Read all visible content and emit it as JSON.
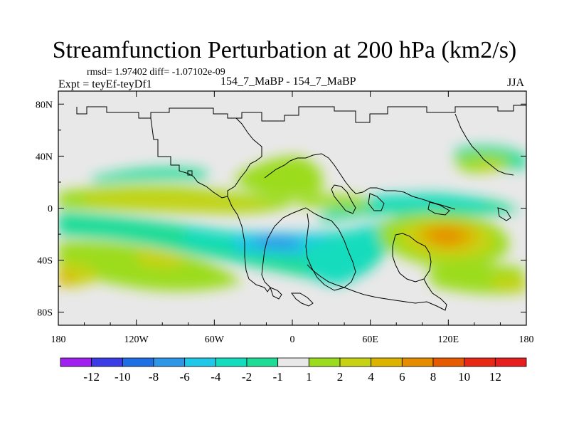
{
  "chart_data": {
    "type": "heatmap",
    "title": "Streamfunction Perturbation at 200 hPa (km2/s)",
    "stats_text": "rmsd= 1.97402 diff= -1.07102e-09",
    "experiment": "Expt = teyEf-teyDf1",
    "runs": "154_7_MaBP - 154_7_MaBP",
    "season": "JJA",
    "xlim": [
      -180,
      180
    ],
    "ylim": [
      -90,
      90
    ],
    "x_ticks": [
      {
        "value": -180,
        "label": "180"
      },
      {
        "value": -120,
        "label": "120W"
      },
      {
        "value": -60,
        "label": "60W"
      },
      {
        "value": 0,
        "label": "0"
      },
      {
        "value": 60,
        "label": "60E"
      },
      {
        "value": 120,
        "label": "120E"
      },
      {
        "value": 180,
        "label": "180"
      }
    ],
    "y_ticks": [
      {
        "value": 80,
        "label": "80N"
      },
      {
        "value": 40,
        "label": "40N"
      },
      {
        "value": 0,
        "label": "0"
      },
      {
        "value": -40,
        "label": "40S"
      },
      {
        "value": -80,
        "label": "80S"
      }
    ],
    "colorbar": {
      "labels": [
        "-12",
        "-10",
        "-8",
        "-6",
        "-4",
        "-2",
        "-1",
        "1",
        "2",
        "4",
        "6",
        "8",
        "10",
        "12"
      ],
      "colors": [
        "#a020f0",
        "#3c3ce6",
        "#1e6ee6",
        "#2d96e6",
        "#1ec8e6",
        "#14dcbe",
        "#1edc96",
        "#e8e8e8",
        "#9bdc1e",
        "#c8d214",
        "#dcb400",
        "#e68c00",
        "#e65a00",
        "#e62814",
        "#e61e1e"
      ]
    },
    "anomalies": [
      {
        "lon": -80,
        "lat": -22,
        "level": 1
      },
      {
        "lon": 0,
        "lat": -22,
        "level": 1
      },
      {
        "lon": 50,
        "lat": -18,
        "level": 1
      },
      {
        "lon": -10,
        "lat": -24,
        "level": 2
      },
      {
        "lon": 45,
        "lat": -25,
        "level": 2
      },
      {
        "lon": -115,
        "lat": -8,
        "level": 1
      },
      {
        "lon": 90,
        "lat": 10,
        "level": 1
      },
      {
        "lon": 105,
        "lat": 8,
        "level": 2
      },
      {
        "lon": -140,
        "lat": 33,
        "level": 1
      },
      {
        "lon": -162,
        "lat": -46,
        "level": 1
      },
      {
        "lon": -95,
        "lat": 6,
        "level": 2
      },
      {
        "lon": -130,
        "lat": 10,
        "level": 2
      },
      {
        "lon": 0,
        "lat": 25,
        "level": 2
      },
      {
        "lon": 120,
        "lat": -20,
        "level": 4
      },
      {
        "lon": 118,
        "lat": -18,
        "level": 5
      },
      {
        "lon": 155,
        "lat": 32,
        "level": 3
      },
      {
        "lon": -165,
        "lat": -45,
        "level": 3
      },
      {
        "lon": -125,
        "lat": -55,
        "level": 2
      },
      {
        "lon": 160,
        "lat": -50,
        "level": 3
      },
      {
        "lon": -100,
        "lat": -30,
        "level": 3
      }
    ]
  }
}
